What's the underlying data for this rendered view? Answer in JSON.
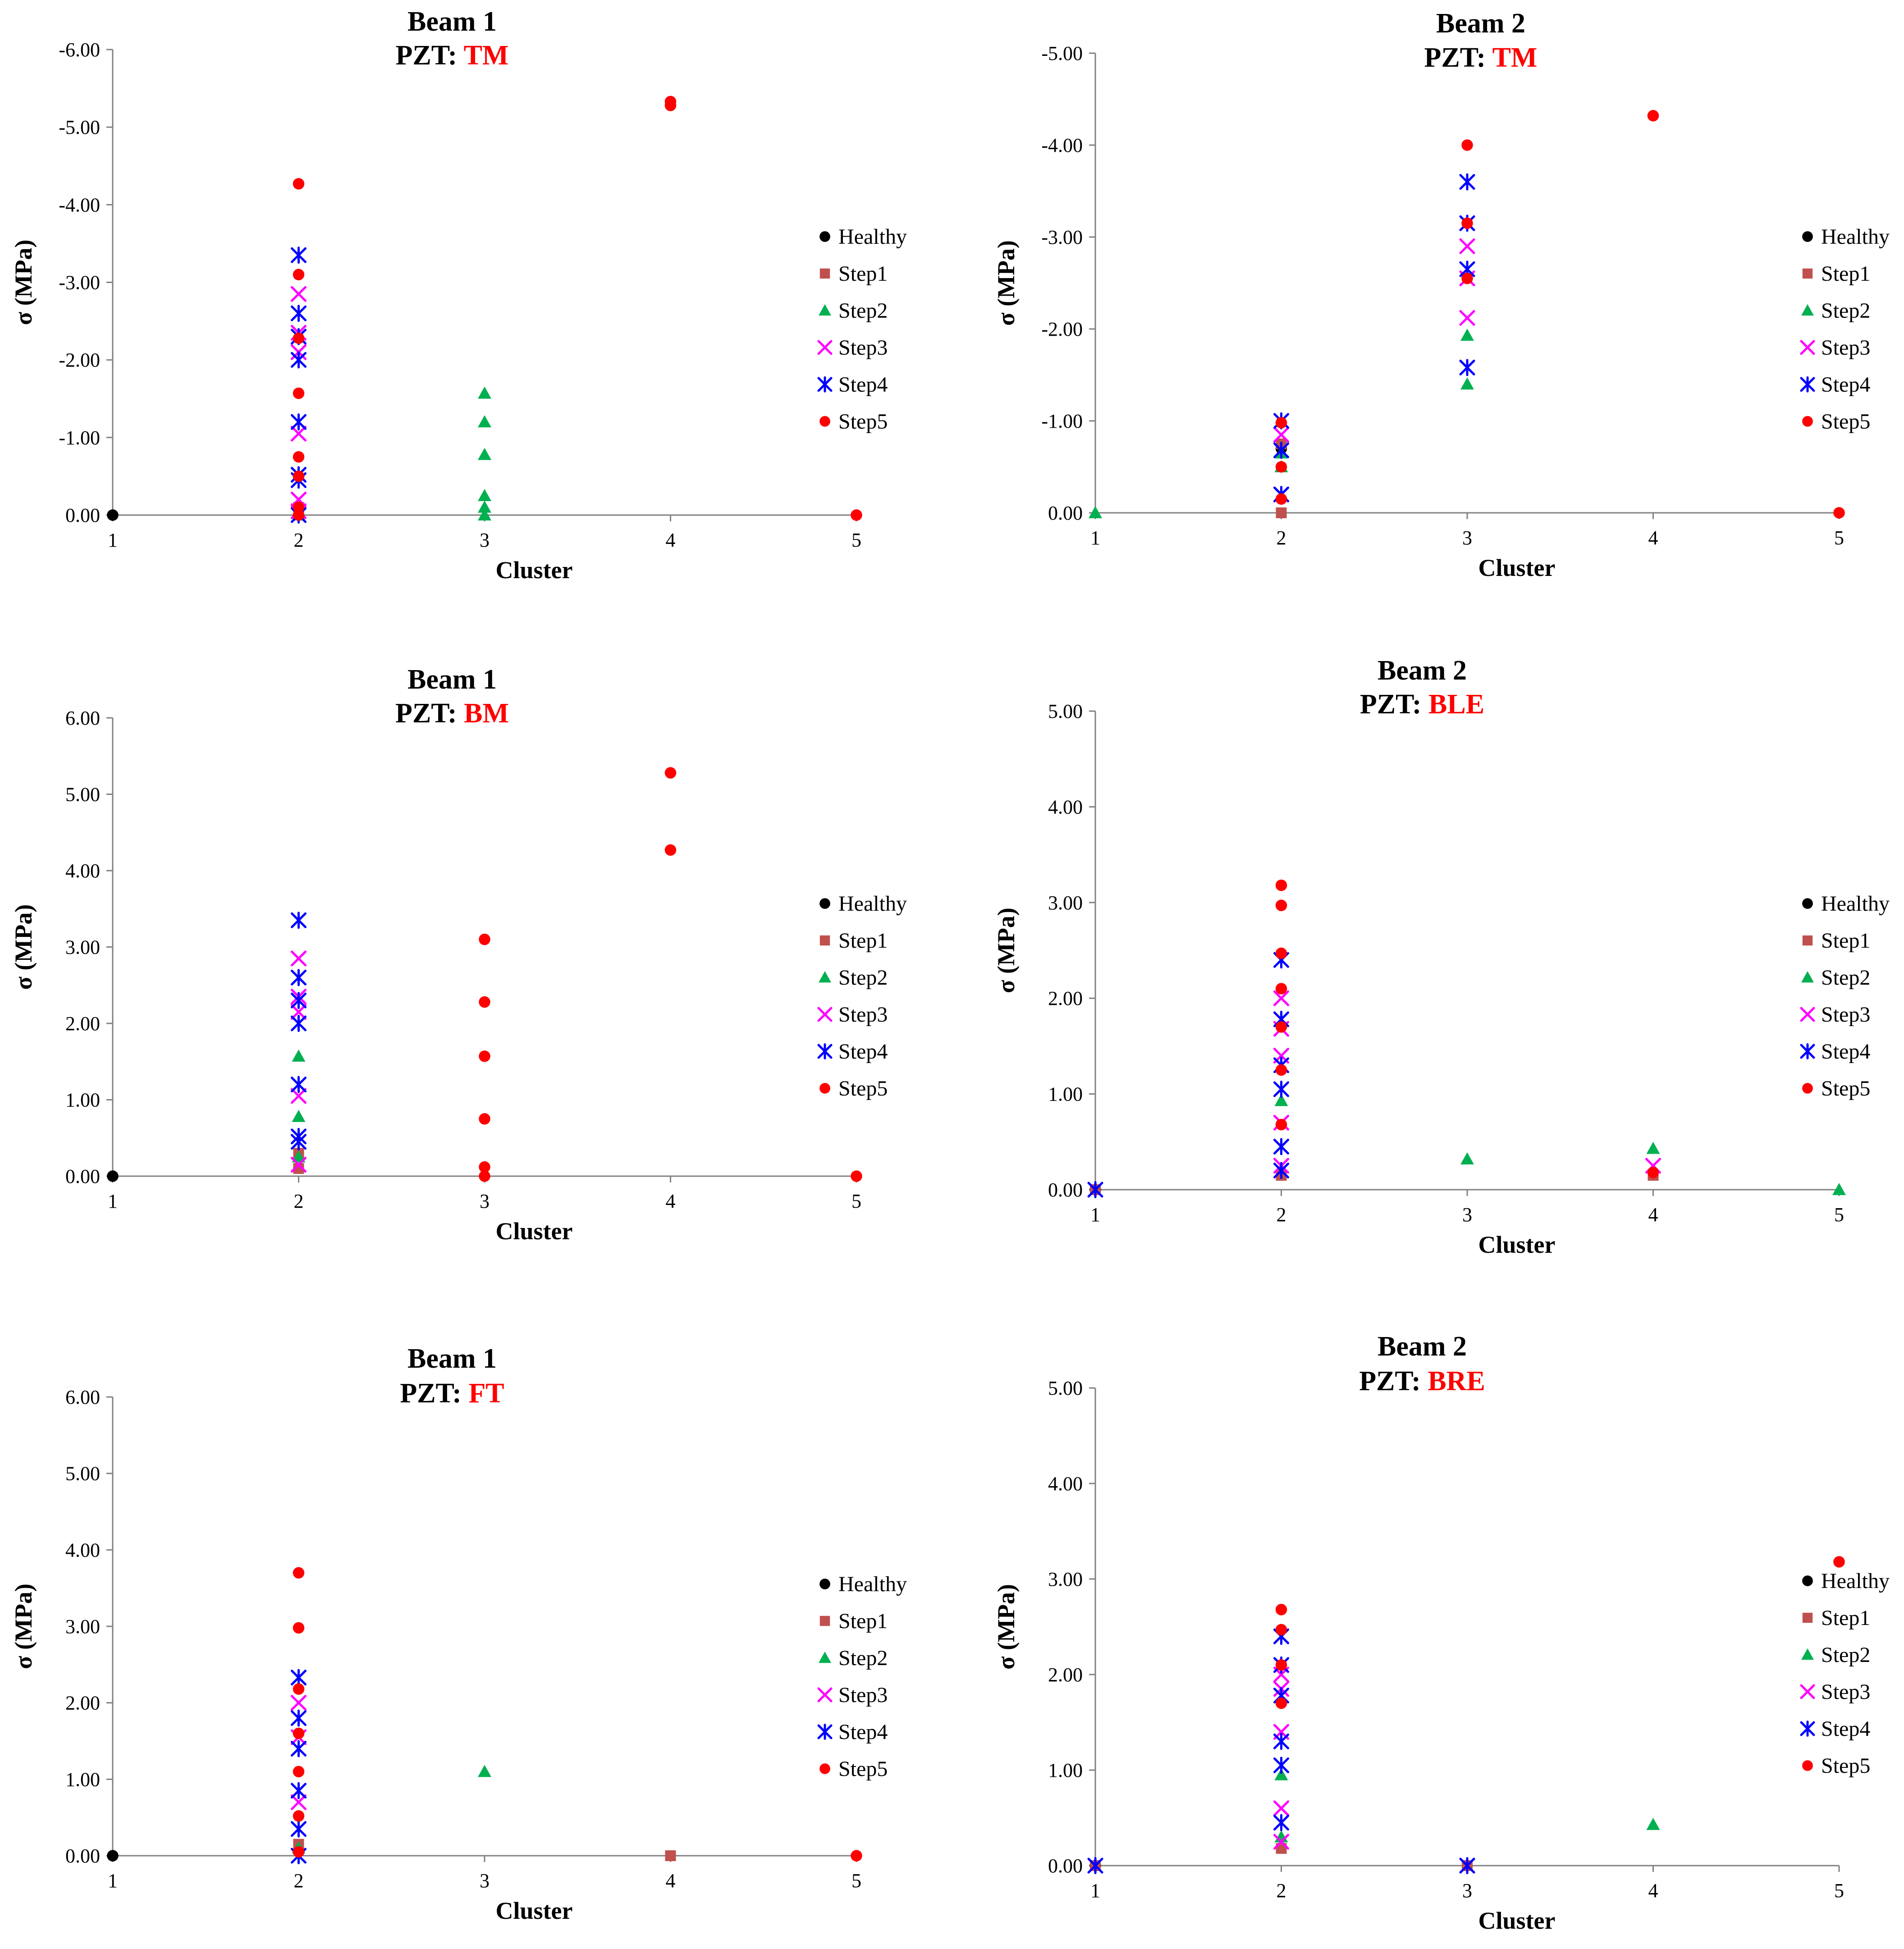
{
  "legend": [
    "Healthy",
    "Step1",
    "Step2",
    "Step3",
    "Step4",
    "Step5"
  ],
  "series_colors": {
    "Healthy": "#000000",
    "Step1": "#c0504d",
    "Step2": "#00b050",
    "Step3": "#ff00ff",
    "Step4": "#0000ff",
    "Step5": "#ff0000"
  },
  "series_markers": {
    "Healthy": "circle",
    "Step1": "square",
    "Step2": "triangle",
    "Step3": "x",
    "Step4": "asterisk",
    "Step5": "circle"
  },
  "chart_data": [
    {
      "type": "scatter",
      "title_line1": "Beam 1",
      "title_prefix": "PZT: ",
      "title_highlight": "TM",
      "xlabel": "Cluster",
      "ylabel": "σ (MPa)",
      "xlim": [
        1,
        5
      ],
      "ylim": [
        -6,
        0
      ],
      "y_reversed": true,
      "x_ticks": [
        "1",
        "2",
        "3",
        "4",
        "5"
      ],
      "y_ticks": [
        "-6.00",
        "-5.00",
        "-4.00",
        "-3.00",
        "-2.00",
        "-1.00",
        "0.00"
      ],
      "series": [
        {
          "name": "Healthy",
          "x": [
            1
          ],
          "y": [
            0
          ]
        },
        {
          "name": "Step1",
          "x": [
            2,
            2
          ],
          "y": [
            0,
            -0.1
          ]
        },
        {
          "name": "Step2",
          "x": [
            2,
            2,
            3,
            3,
            3,
            3,
            3,
            3
          ],
          "y": [
            0,
            -0.05,
            -1.57,
            -1.2,
            -0.78,
            -0.25,
            -0.1,
            0
          ]
        },
        {
          "name": "Step3",
          "x": [
            2,
            2,
            2,
            2,
            2,
            2
          ],
          "y": [
            -2.85,
            -2.35,
            -2.1,
            -1.05,
            -0.2,
            -0.05
          ]
        },
        {
          "name": "Step4",
          "x": [
            2,
            2,
            2,
            2,
            2,
            2,
            2,
            2
          ],
          "y": [
            -3.35,
            -2.6,
            -2.3,
            -2.0,
            -1.2,
            -0.52,
            -0.45,
            0
          ]
        },
        {
          "name": "Step5",
          "x": [
            2,
            2,
            2,
            2,
            2,
            2,
            2,
            2,
            4,
            4,
            5
          ],
          "y": [
            -4.27,
            -3.1,
            -2.28,
            -1.57,
            -0.75,
            -0.5,
            -0.1,
            0,
            -5.33,
            -5.28,
            0
          ]
        }
      ]
    },
    {
      "type": "scatter",
      "title_line1": "Beam 2",
      "title_prefix": "PZT: ",
      "title_highlight": "TM",
      "xlabel": "Cluster",
      "ylabel": "σ (MPa)",
      "xlim": [
        1,
        5
      ],
      "ylim": [
        -5,
        0
      ],
      "y_reversed": true,
      "x_ticks": [
        "1",
        "2",
        "3",
        "4",
        "5"
      ],
      "y_ticks": [
        "-5.00",
        "-4.00",
        "-3.00",
        "-2.00",
        "-1.00",
        "0.00"
      ],
      "series": [
        {
          "name": "Healthy",
          "x": [
            2
          ],
          "y": [
            -0.7
          ]
        },
        {
          "name": "Step1",
          "x": [
            2,
            2
          ],
          "y": [
            0,
            -0.75
          ]
        },
        {
          "name": "Step2",
          "x": [
            1,
            2,
            2,
            3,
            3
          ],
          "y": [
            0,
            -0.5,
            -0.65,
            -1.93,
            -1.4
          ]
        },
        {
          "name": "Step3",
          "x": [
            2,
            2,
            3,
            3,
            3
          ],
          "y": [
            -0.85,
            -0.2,
            -2.9,
            -2.55,
            -2.12
          ]
        },
        {
          "name": "Step4",
          "x": [
            2,
            2,
            2,
            3,
            3,
            3,
            3
          ],
          "y": [
            -1.0,
            -0.68,
            -0.2,
            -3.6,
            -3.15,
            -2.65,
            -1.58
          ]
        },
        {
          "name": "Step5",
          "x": [
            2,
            2,
            2,
            3,
            3,
            3,
            4,
            5
          ],
          "y": [
            -0.98,
            -0.5,
            -0.15,
            -4.0,
            -3.15,
            -2.55,
            -4.32,
            0
          ]
        }
      ]
    },
    {
      "type": "scatter",
      "title_line1": "Beam 1",
      "title_prefix": "PZT: ",
      "title_highlight": "BM",
      "xlabel": "Cluster",
      "ylabel": "σ (MPa)",
      "xlim": [
        1,
        5
      ],
      "ylim": [
        0,
        6
      ],
      "y_reversed": false,
      "x_ticks": [
        "1",
        "2",
        "3",
        "4",
        "5"
      ],
      "y_ticks": [
        "0.00",
        "1.00",
        "2.00",
        "3.00",
        "4.00",
        "5.00",
        "6.00"
      ],
      "series": [
        {
          "name": "Healthy",
          "x": [
            1
          ],
          "y": [
            0
          ]
        },
        {
          "name": "Step1",
          "x": [
            2,
            2
          ],
          "y": [
            0.1,
            0.3
          ]
        },
        {
          "name": "Step2",
          "x": [
            2,
            2,
            2
          ],
          "y": [
            1.57,
            0.78,
            0.25
          ]
        },
        {
          "name": "Step3",
          "x": [
            2,
            2,
            2,
            2,
            2
          ],
          "y": [
            2.85,
            2.35,
            2.15,
            1.05,
            0.15
          ]
        },
        {
          "name": "Step4",
          "x": [
            2,
            2,
            2,
            2,
            2,
            2,
            2
          ],
          "y": [
            3.35,
            2.6,
            2.3,
            2.0,
            1.2,
            0.52,
            0.45
          ]
        },
        {
          "name": "Step5",
          "x": [
            3,
            3,
            3,
            3,
            3,
            3,
            4,
            4,
            5
          ],
          "y": [
            3.1,
            2.28,
            1.57,
            0.75,
            0.12,
            0,
            5.28,
            4.27,
            0
          ]
        }
      ]
    },
    {
      "type": "scatter",
      "title_line1": "Beam 2",
      "title_prefix": "PZT: ",
      "title_highlight": "BLE",
      "xlabel": "Cluster",
      "ylabel": "σ (MPa)",
      "xlim": [
        1,
        5
      ],
      "ylim": [
        0,
        5
      ],
      "y_reversed": false,
      "x_ticks": [
        "1",
        "2",
        "3",
        "4",
        "5"
      ],
      "y_ticks": [
        "0.00",
        "1.00",
        "2.00",
        "3.00",
        "4.00",
        "5.00"
      ],
      "series": [
        {
          "name": "Healthy",
          "x": [
            1
          ],
          "y": [
            0
          ]
        },
        {
          "name": "Step1",
          "x": [
            1,
            2,
            4
          ],
          "y": [
            0,
            0.15,
            0.15
          ]
        },
        {
          "name": "Step2",
          "x": [
            2,
            3,
            4,
            5
          ],
          "y": [
            0.93,
            0.32,
            0.43,
            0
          ]
        },
        {
          "name": "Step3",
          "x": [
            2,
            2,
            2,
            2,
            2,
            4
          ],
          "y": [
            2.0,
            1.68,
            1.4,
            0.7,
            0.25,
            0.25
          ]
        },
        {
          "name": "Step4",
          "x": [
            1,
            2,
            2,
            2,
            2,
            2,
            2
          ],
          "y": [
            0,
            2.4,
            1.78,
            1.3,
            1.05,
            0.45,
            0.2
          ]
        },
        {
          "name": "Step5",
          "x": [
            2,
            2,
            2,
            2,
            2,
            2,
            2,
            4
          ],
          "y": [
            3.18,
            2.97,
            2.47,
            2.1,
            1.7,
            1.25,
            0.68,
            0.18
          ]
        }
      ]
    },
    {
      "type": "scatter",
      "title_line1": "Beam 1",
      "title_prefix": "PZT: ",
      "title_highlight": "FT",
      "xlabel": "Cluster",
      "ylabel": "σ (MPa)",
      "xlim": [
        1,
        5
      ],
      "ylim": [
        0,
        6
      ],
      "y_reversed": false,
      "x_ticks": [
        "1",
        "2",
        "3",
        "4",
        "5"
      ],
      "y_ticks": [
        "0.00",
        "1.00",
        "2.00",
        "3.00",
        "4.00",
        "5.00",
        "6.00"
      ],
      "series": [
        {
          "name": "Healthy",
          "x": [
            1
          ],
          "y": [
            0
          ]
        },
        {
          "name": "Step1",
          "x": [
            2,
            4
          ],
          "y": [
            0.15,
            0
          ]
        },
        {
          "name": "Step2",
          "x": [
            2,
            3
          ],
          "y": [
            0.1,
            1.1
          ]
        },
        {
          "name": "Step3",
          "x": [
            2,
            2,
            2
          ],
          "y": [
            2.0,
            1.55,
            0.7
          ]
        },
        {
          "name": "Step4",
          "x": [
            2,
            2,
            2,
            2,
            2,
            2
          ],
          "y": [
            2.33,
            1.8,
            1.4,
            0.85,
            0.35,
            0
          ]
        },
        {
          "name": "Step5",
          "x": [
            2,
            2,
            2,
            2,
            2,
            2,
            2,
            5
          ],
          "y": [
            3.7,
            2.98,
            2.18,
            1.6,
            1.1,
            0.52,
            0.05,
            0
          ]
        }
      ]
    },
    {
      "type": "scatter",
      "title_line1": "Beam 2",
      "title_prefix": "PZT: ",
      "title_highlight": "BRE",
      "xlabel": "Cluster",
      "ylabel": "σ (MPa)",
      "xlim": [
        1,
        5
      ],
      "ylim": [
        0,
        5
      ],
      "y_reversed": false,
      "x_ticks": [
        "1",
        "2",
        "3",
        "4",
        "5"
      ],
      "y_ticks": [
        "0.00",
        "1.00",
        "2.00",
        "3.00",
        "4.00",
        "5.00"
      ],
      "series": [
        {
          "name": "Healthy",
          "x": [
            1
          ],
          "y": [
            0
          ]
        },
        {
          "name": "Step1",
          "x": [
            1,
            2,
            3
          ],
          "y": [
            0,
            0.18,
            0
          ]
        },
        {
          "name": "Step2",
          "x": [
            2,
            2,
            4
          ],
          "y": [
            0.95,
            0.3,
            0.43
          ]
        },
        {
          "name": "Step3",
          "x": [
            2,
            2,
            2,
            2,
            2,
            3
          ],
          "y": [
            2.0,
            1.85,
            1.4,
            0.6,
            0.25,
            0
          ]
        },
        {
          "name": "Step4",
          "x": [
            1,
            2,
            2,
            2,
            2,
            2,
            2,
            3
          ],
          "y": [
            0,
            2.4,
            2.1,
            1.78,
            1.3,
            1.05,
            0.45,
            0
          ]
        },
        {
          "name": "Step5",
          "x": [
            2,
            2,
            2,
            2,
            5
          ],
          "y": [
            2.68,
            2.47,
            2.1,
            1.7,
            3.18
          ]
        }
      ]
    }
  ]
}
